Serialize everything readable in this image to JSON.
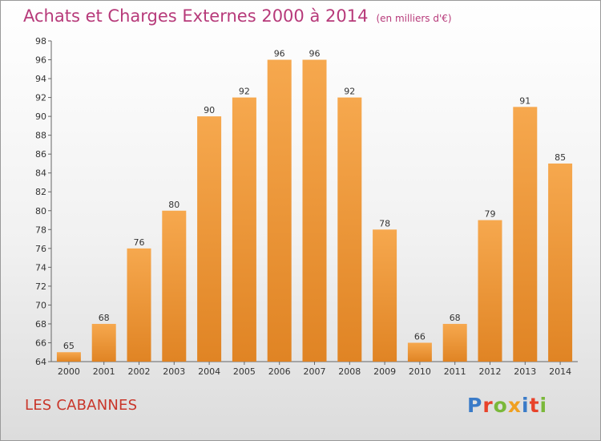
{
  "chart_title": "Achats et Charges Externes 2000 à 2014",
  "chart_unit": "(en milliers d'€)",
  "commune": "LES CABANNES",
  "logo_text": "Proxiti",
  "colors": {
    "title": "#b73a7a",
    "bar_light": "#f6a84e",
    "bar_dark": "#e08424",
    "commune": "#c9362a",
    "logo": [
      "#3a7bc8",
      "#e8422a",
      "#7ab83a",
      "#f0a020",
      "#3a7bc8",
      "#e8422a",
      "#7ab83a"
    ]
  },
  "chart_data": {
    "type": "bar",
    "title": "Achats et Charges Externes 2000 à 2014",
    "subtitle": "(en milliers d'€)",
    "categories": [
      "2000",
      "2001",
      "2002",
      "2003",
      "2004",
      "2005",
      "2006",
      "2007",
      "2008",
      "2009",
      "2010",
      "2011",
      "2012",
      "2013",
      "2014"
    ],
    "values": [
      65,
      68,
      76,
      80,
      90,
      92,
      96,
      96,
      92,
      78,
      66,
      68,
      79,
      91,
      85
    ],
    "ylim": [
      64,
      98
    ],
    "yticks": [
      64,
      66,
      68,
      70,
      72,
      74,
      76,
      78,
      80,
      82,
      84,
      86,
      88,
      90,
      92,
      94,
      96,
      98
    ],
    "grid": false,
    "data_labels": true
  }
}
